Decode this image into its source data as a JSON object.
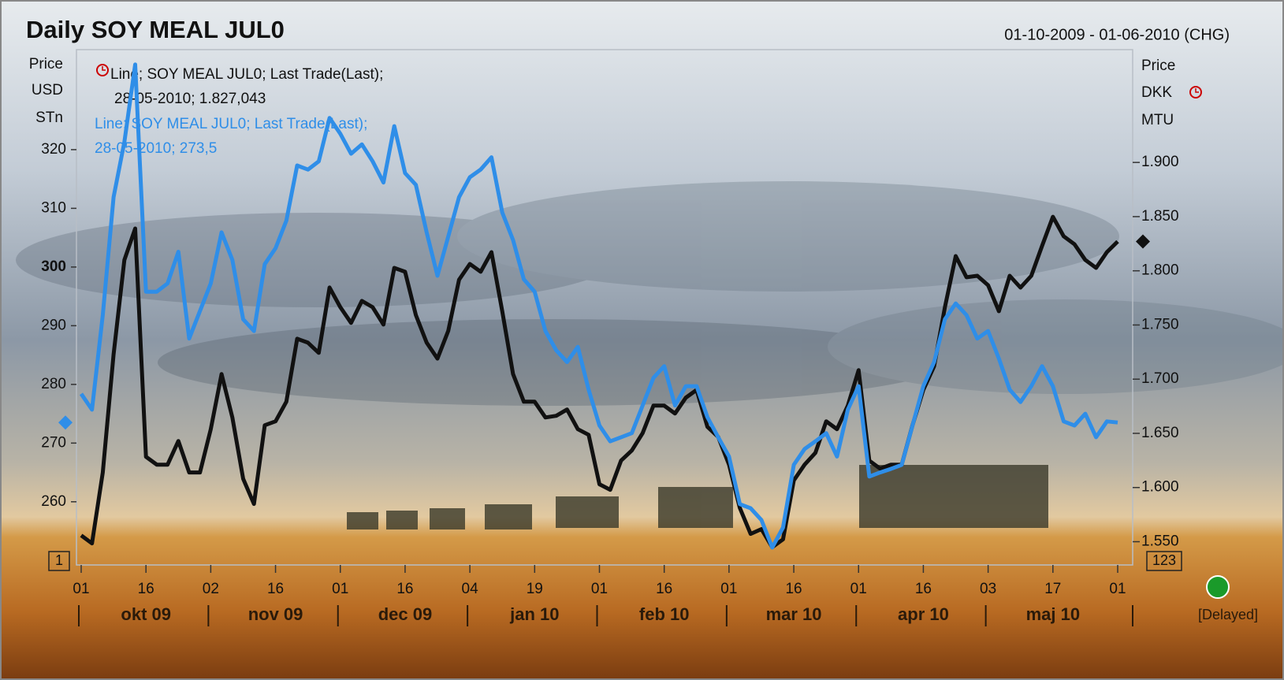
{
  "chart_data": {
    "type": "line",
    "title": "Daily SOY MEAL JUL0",
    "date_range": "01-10-2009 - 01-06-2010 (CHG)",
    "y_label": [
      "Price",
      "USD",
      "STn"
    ],
    "y2_label": [
      "Price",
      "DKK",
      "MTU"
    ],
    "left_marker": "1",
    "right_marker": "123",
    "status": "[Delayed]",
    "categories": [
      "01",
      null,
      null,
      null,
      null,
      null,
      "16",
      null,
      null,
      null,
      null,
      null,
      "02",
      null,
      null,
      null,
      null,
      null,
      "16",
      null,
      null,
      null,
      null,
      null,
      "01",
      null,
      null,
      null,
      null,
      null,
      "16",
      null,
      null,
      null,
      null,
      null,
      "04",
      null,
      null,
      null,
      null,
      null,
      "19",
      null,
      null,
      null,
      null,
      null,
      "01",
      null,
      null,
      null,
      null,
      null,
      "16",
      null,
      null,
      null,
      null,
      null,
      "01",
      null,
      null,
      null,
      null,
      null,
      "16",
      null,
      null,
      null,
      null,
      null,
      "01",
      null,
      null,
      null,
      null,
      null,
      "16",
      null,
      null,
      null,
      null,
      null,
      "03",
      null,
      null,
      null,
      null,
      null,
      "17",
      null,
      null,
      null,
      null,
      null,
      "01"
    ],
    "months": [
      "okt 09",
      "nov 09",
      "dec 09",
      "jan 10",
      "feb 10",
      "mar 10",
      "apr 10",
      "maj 10"
    ],
    "ylim": [
      249.5,
      336.1
    ],
    "yticks": [
      260,
      270,
      280,
      290,
      300,
      310,
      320
    ],
    "y2lim": [
      1530,
      1999
    ],
    "y2ticks": [
      {
        "value": 1550,
        "label": "1.550"
      },
      {
        "value": 1600,
        "label": "1.600"
      },
      {
        "value": 1650,
        "label": "1.650"
      },
      {
        "value": 1700,
        "label": "1.700"
      },
      {
        "value": 1750,
        "label": "1.750"
      },
      {
        "value": 1800,
        "label": "1.800"
      },
      {
        "value": 1850,
        "label": "1.850"
      },
      {
        "value": 1900,
        "label": "1.900"
      }
    ],
    "series": [
      {
        "name": "Line; SOY MEAL JUL0; Last Trade(Last);",
        "last_label": "28-05-2010; 1.827,043",
        "color": "#111111",
        "axis": "y2",
        "values": [
          1555.8,
          1548.5,
          1613.9,
          1722.8,
          1810,
          1839,
          1628.4,
          1621.1,
          1621.1,
          1642.9,
          1613.9,
          1613.9,
          1653.8,
          1704.7,
          1664.7,
          1608.1,
          1584.8,
          1657.5,
          1661.1,
          1679.2,
          1737.3,
          1733.7,
          1724.3,
          1784.6,
          1766.4,
          1751.9,
          1772.2,
          1766.4,
          1750.4,
          1802.7,
          1799.1,
          1759.1,
          1733.7,
          1719,
          1744.6,
          1791.8,
          1806.3,
          1799.1,
          1817.2,
          1762.7,
          1704.7,
          1679.2,
          1679.2,
          1664.7,
          1666.2,
          1672,
          1653.8,
          1648.7,
          1603,
          1597.9,
          1624.8,
          1634.2,
          1650.2,
          1675.6,
          1675.6,
          1668.3,
          1682.9,
          1690.1,
          1656,
          1646.6,
          1621.1,
          1581.2,
          1557.2,
          1561.6,
          1544.9,
          1552.2,
          1606.6,
          1621.1,
          1632,
          1661.1,
          1653.8,
          1675.6,
          1708.3,
          1624.8,
          1617.5,
          1621.1,
          1621.1,
          1657.5,
          1690.1,
          1711.9,
          1766.4,
          1813.6,
          1794,
          1795.4,
          1786.7,
          1762.7,
          1795.4,
          1784.5,
          1795.4,
          1823,
          1849.9,
          1831.8,
          1824.5,
          1810,
          1802.7,
          1817.2,
          1827
        ]
      },
      {
        "name": "Line; SOY MEAL JUL0; Last Trade(Last);",
        "last_label": "28-05-2010; 273,5",
        "color": "#2f8ee8",
        "axis": "y",
        "values": [
          278.4,
          275.7,
          291.8,
          311.9,
          321.3,
          334.5,
          295.8,
          295.8,
          297.2,
          302.6,
          287.8,
          292.5,
          297.2,
          305.9,
          301.2,
          291.1,
          289.1,
          300.5,
          303.2,
          307.9,
          317.3,
          316.6,
          318,
          325.4,
          322.7,
          319.3,
          320.9,
          318,
          314.4,
          324,
          316,
          314,
          305.9,
          298.5,
          305.2,
          311.9,
          315.3,
          316.6,
          318.7,
          309.3,
          304.6,
          297.9,
          295.8,
          289.1,
          285.8,
          283.8,
          286.4,
          279.1,
          273,
          270.3,
          271,
          271.7,
          276.4,
          281.1,
          283.1,
          276.4,
          279.7,
          279.7,
          274.4,
          271,
          267.7,
          259.6,
          258.9,
          256.9,
          252.2,
          255.6,
          266.3,
          269,
          270.3,
          271.7,
          267.7,
          275.7,
          279.7,
          264.3,
          265,
          265.6,
          266.3,
          273,
          279.7,
          283.8,
          291.1,
          293.8,
          291.8,
          287.8,
          289.1,
          284.4,
          279.1,
          277,
          279.7,
          283.1,
          279.7,
          273.7,
          273,
          275,
          271,
          273.7,
          273.5
        ]
      }
    ]
  }
}
